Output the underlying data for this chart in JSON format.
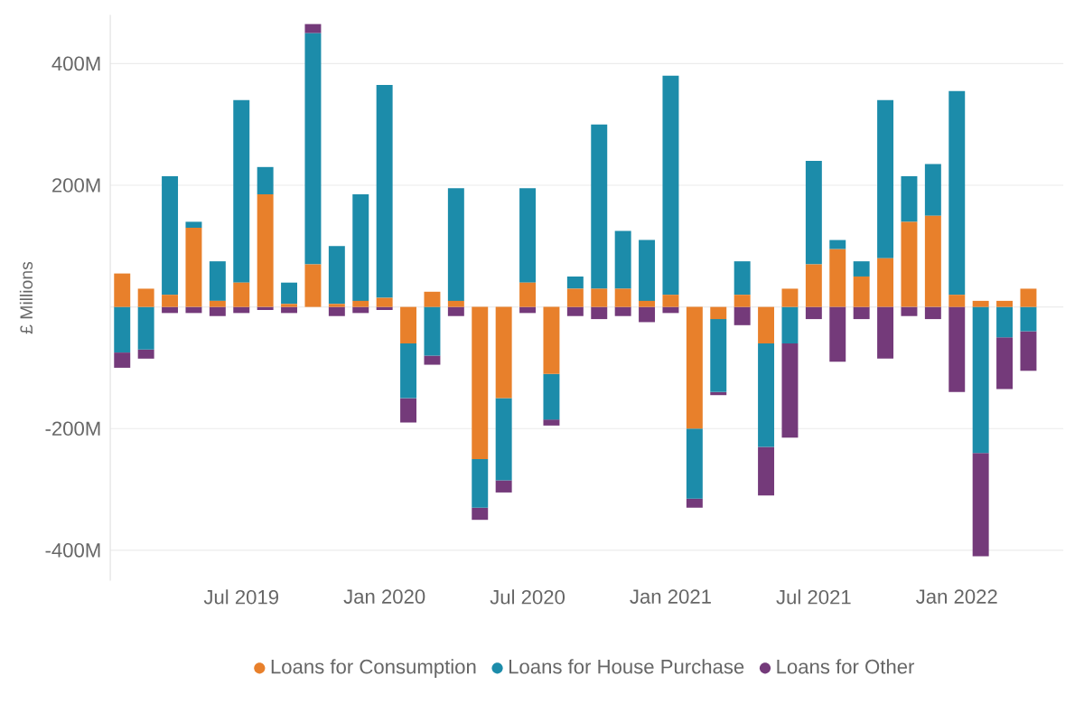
{
  "chart_data": {
    "type": "bar",
    "stacked": true,
    "ylabel": "£ Millions",
    "x": [
      "2019-02",
      "2019-03",
      "2019-04",
      "2019-05",
      "2019-06",
      "2019-07",
      "2019-08",
      "2019-09",
      "2019-10",
      "2019-11",
      "2019-12",
      "2020-01",
      "2020-02",
      "2020-03",
      "2020-04",
      "2020-05",
      "2020-06",
      "2020-07",
      "2020-08",
      "2020-09",
      "2020-10",
      "2020-11",
      "2020-12",
      "2021-01",
      "2021-02",
      "2021-03",
      "2021-04",
      "2021-05",
      "2021-06",
      "2021-07",
      "2021-08",
      "2021-09",
      "2021-10",
      "2021-11",
      "2021-12",
      "2022-01",
      "2022-02",
      "2022-03",
      "2022-04"
    ],
    "series": [
      {
        "name": "Loans for Consumption",
        "color": "#e8802b",
        "values": [
          55,
          30,
          20,
          130,
          10,
          40,
          185,
          5,
          70,
          5,
          10,
          15,
          -60,
          25,
          10,
          -250,
          -150,
          40,
          -110,
          30,
          30,
          30,
          10,
          20,
          -200,
          -20,
          20,
          -60,
          30,
          70,
          95,
          50,
          80,
          140,
          150,
          20,
          10,
          10,
          30
        ]
      },
      {
        "name": "Loans for House Purchase",
        "color": "#1c8caa",
        "values": [
          -75,
          -70,
          195,
          10,
          65,
          300,
          45,
          35,
          380,
          95,
          175,
          350,
          -90,
          -80,
          185,
          -80,
          -135,
          155,
          -75,
          20,
          270,
          95,
          100,
          360,
          -115,
          -120,
          55,
          -170,
          -60,
          170,
          15,
          25,
          260,
          75,
          85,
          335,
          -240,
          -50,
          -40
        ]
      },
      {
        "name": "Loans for Other",
        "color": "#743a7a",
        "values": [
          -25,
          -15,
          -10,
          -10,
          -15,
          -10,
          -5,
          -10,
          15,
          -15,
          -10,
          -5,
          -40,
          -15,
          -15,
          -20,
          -20,
          -10,
          -10,
          -15,
          -20,
          -15,
          -25,
          -10,
          -15,
          -5,
          -30,
          -80,
          -155,
          -20,
          -90,
          -20,
          -85,
          -15,
          -20,
          -140,
          -170,
          -85,
          -65
        ]
      }
    ],
    "xlim": [
      "2019-01-16",
      "2022-05-15"
    ],
    "xticks": [
      {
        "value": "2019-07",
        "label": "Jul 2019"
      },
      {
        "value": "2020-01",
        "label": "Jan 2020"
      },
      {
        "value": "2020-07",
        "label": "Jul 2020"
      },
      {
        "value": "2021-01",
        "label": "Jan 2021"
      },
      {
        "value": "2021-07",
        "label": "Jul 2021"
      },
      {
        "value": "2022-01",
        "label": "Jan 2022"
      }
    ],
    "ylim": [
      -450,
      480
    ],
    "yticks": [
      {
        "value": -400,
        "label": "-400M"
      },
      {
        "value": -200,
        "label": "-200M"
      },
      {
        "value": 0,
        "label": null
      },
      {
        "value": 200,
        "label": "200M"
      },
      {
        "value": 400,
        "label": "400M"
      }
    ],
    "grid": "y",
    "legend": "bottom"
  }
}
